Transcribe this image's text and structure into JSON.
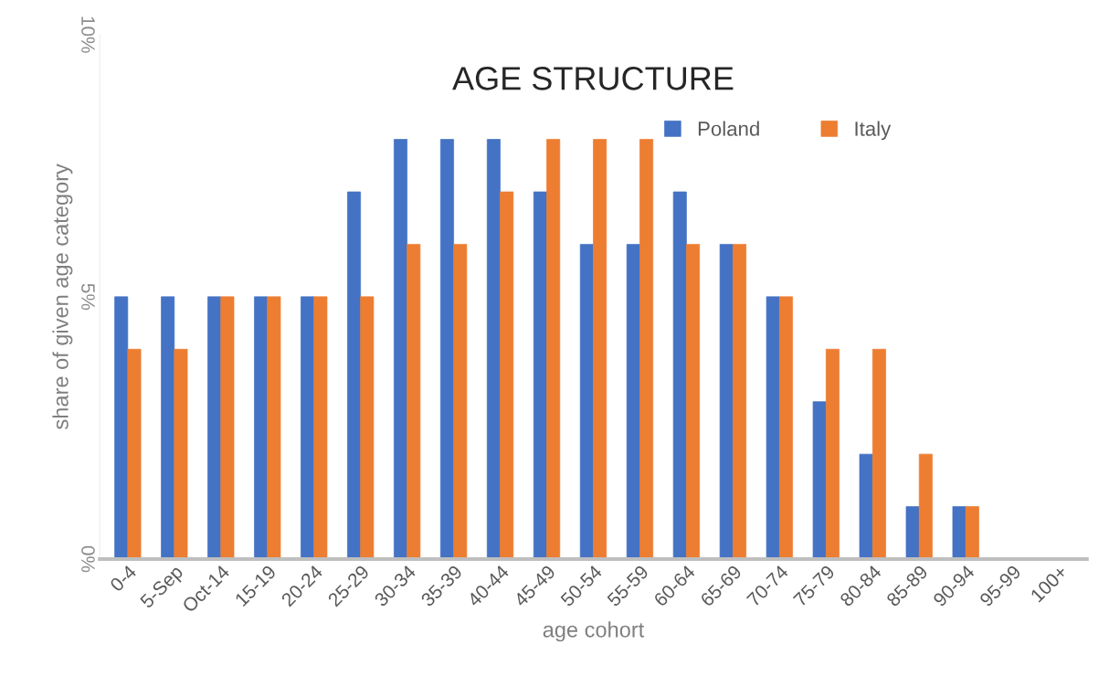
{
  "chart_data": {
    "type": "bar",
    "title": "AGE STRUCTURE",
    "xlabel": "age cohort",
    "ylabel": "share of given age category",
    "categories": [
      "0-4",
      "5-Sep",
      "Oct-14",
      "15-19",
      "20-24",
      "25-29",
      "30-34",
      "35-39",
      "40-44",
      "45-49",
      "50-54",
      "55-59",
      "60-64",
      "65-69",
      "70-74",
      "75-79",
      "80-84",
      "85-89",
      "90-94",
      "95-99",
      "100+"
    ],
    "series": [
      {
        "name": "Poland",
        "color": "#4472c4",
        "values": [
          5,
          5,
          5,
          5,
          5,
          7,
          8,
          8,
          8,
          7,
          6,
          6,
          7,
          6,
          5,
          3,
          2,
          1,
          1,
          0,
          0
        ]
      },
      {
        "name": "Italy",
        "color": "#ed7d31",
        "values": [
          4,
          4,
          5,
          5,
          5,
          5,
          6,
          6,
          7,
          8,
          8,
          8,
          6,
          6,
          5,
          4,
          4,
          2,
          1,
          0,
          0
        ]
      }
    ],
    "ylim": [
      0,
      10
    ],
    "yticks": [
      {
        "value": 0,
        "label": "0%"
      },
      {
        "value": 5,
        "label": "5%"
      },
      {
        "value": 10,
        "label": "10%"
      }
    ],
    "grid": false,
    "legend": "top right"
  }
}
